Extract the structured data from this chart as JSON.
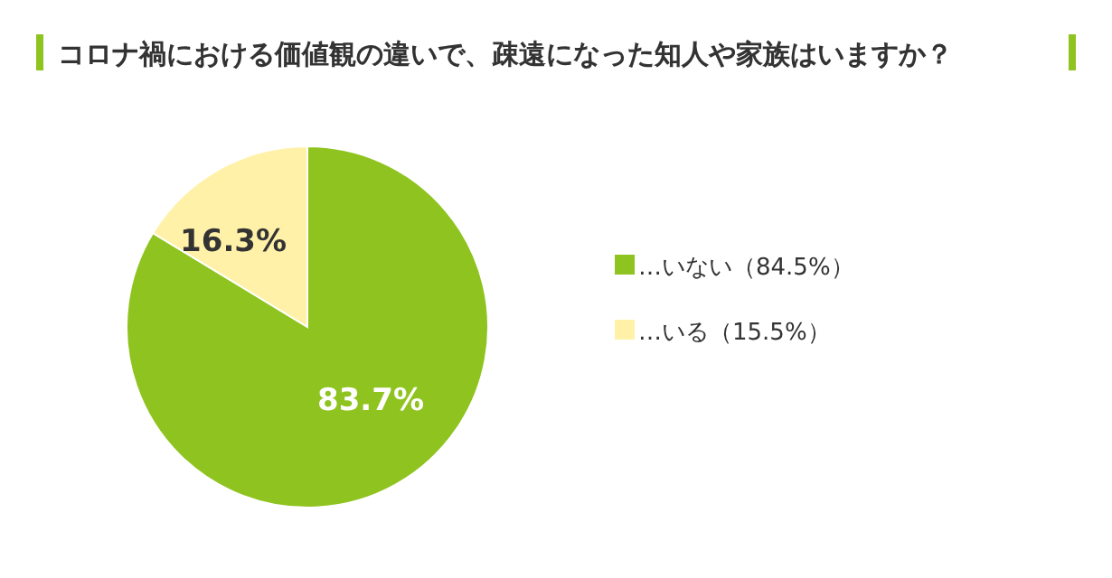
{
  "chart_data": {
    "type": "pie",
    "title": "コロナ禍における価値観の違いで、疎遠になった知人や家族はいますか？",
    "categories": [
      "…いない（84.5%）",
      "…いる（15.5%）"
    ],
    "values": [
      83.7,
      16.3
    ],
    "value_labels": [
      "83.7%",
      "16.3%"
    ],
    "colors": [
      "#8fc31f",
      "#fff1a8"
    ],
    "legend": "right"
  }
}
